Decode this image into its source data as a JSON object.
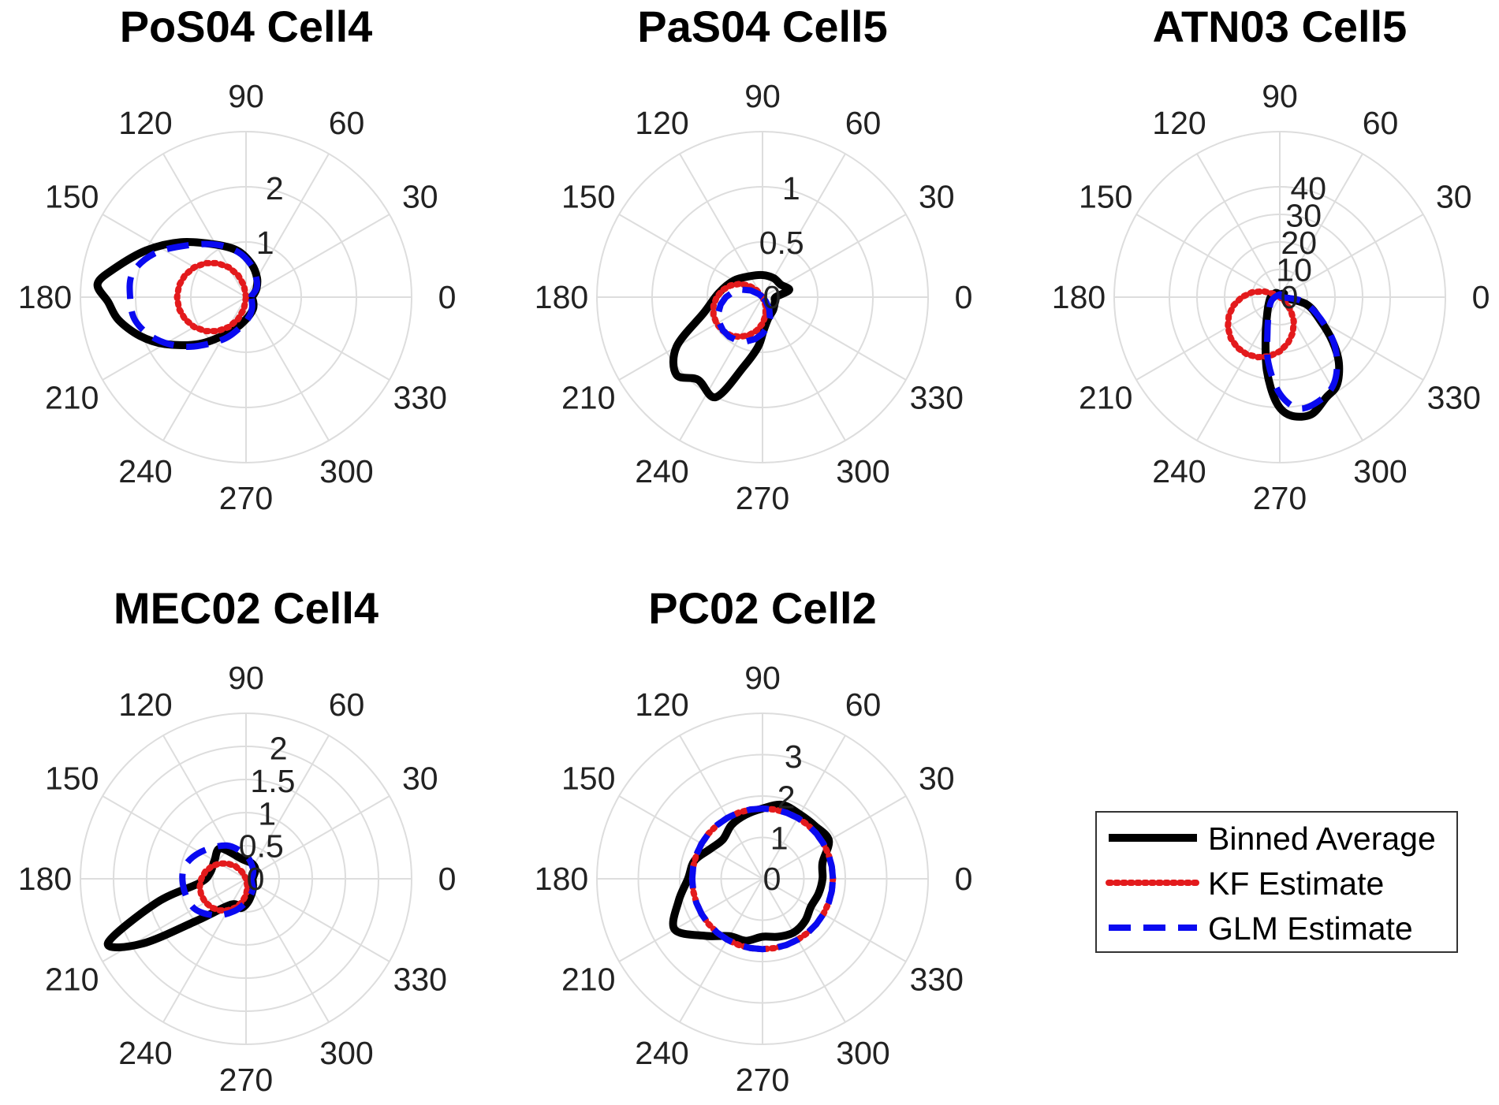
{
  "chart_data": [
    {
      "type": "polar",
      "title": "PoS04 Cell4",
      "angle_ticks": [
        "0",
        "30",
        "60",
        "90",
        "120",
        "150",
        "180",
        "210",
        "240",
        "270",
        "300",
        "330"
      ],
      "rmax": 3,
      "radial_tick_values": [
        1,
        2
      ],
      "radial_tick_labels": [
        "1",
        "2"
      ],
      "series": [
        {
          "name": "Binned Average",
          "points": [
            [
              0,
              0.1
            ],
            [
              20,
              0.15
            ],
            [
              40,
              0.25
            ],
            [
              60,
              0.4
            ],
            [
              80,
              0.6
            ],
            [
              100,
              0.85
            ],
            [
              120,
              1.1
            ],
            [
              140,
              1.55
            ],
            [
              155,
              2.0
            ],
            [
              168,
              2.45
            ],
            [
              175,
              2.7
            ],
            [
              182,
              2.5
            ],
            [
              190,
              2.35
            ],
            [
              200,
              2.05
            ],
            [
              210,
              1.7
            ],
            [
              225,
              1.2
            ],
            [
              245,
              0.7
            ],
            [
              270,
              0.4
            ],
            [
              300,
              0.25
            ],
            [
              330,
              0.15
            ]
          ]
        },
        {
          "name": "KF Estimate",
          "kind": "circle",
          "diameter": 1.25,
          "direction": 180
        },
        {
          "name": "GLM Estimate",
          "points": [
            [
              0,
              0.1
            ],
            [
              20,
              0.12
            ],
            [
              40,
              0.25
            ],
            [
              60,
              0.38
            ],
            [
              80,
              0.58
            ],
            [
              100,
              0.83
            ],
            [
              120,
              1.1
            ],
            [
              140,
              1.45
            ],
            [
              155,
              1.85
            ],
            [
              168,
              2.1
            ],
            [
              180,
              2.1
            ],
            [
              192,
              2.05
            ],
            [
              205,
              1.8
            ],
            [
              220,
              1.4
            ],
            [
              240,
              0.9
            ],
            [
              260,
              0.55
            ],
            [
              280,
              0.35
            ],
            [
              300,
              0.22
            ],
            [
              330,
              0.12
            ]
          ]
        }
      ]
    },
    {
      "type": "polar",
      "title": "PaS04 Cell5",
      "angle_ticks": [
        "0",
        "30",
        "60",
        "90",
        "120",
        "150",
        "180",
        "210",
        "240",
        "270",
        "300",
        "330"
      ],
      "rmax": 1.5,
      "radial_tick_values": [
        0,
        0.5,
        1
      ],
      "radial_tick_labels": [
        "0",
        "0.5",
        "1"
      ],
      "series": [
        {
          "name": "Binned Average",
          "points": [
            [
              0,
              0.12
            ],
            [
              15,
              0.25
            ],
            [
              35,
              0.2
            ],
            [
              60,
              0.2
            ],
            [
              90,
              0.2
            ],
            [
              120,
              0.22
            ],
            [
              150,
              0.3
            ],
            [
              175,
              0.4
            ],
            [
              195,
              0.55
            ],
            [
              210,
              0.9
            ],
            [
              222,
              1.05
            ],
            [
              232,
              0.95
            ],
            [
              245,
              1.0
            ],
            [
              255,
              0.65
            ],
            [
              265,
              0.45
            ],
            [
              272,
              0.3
            ],
            [
              285,
              0.2
            ],
            [
              310,
              0.15
            ],
            [
              340,
              0.12
            ]
          ]
        },
        {
          "name": "KF Estimate",
          "kind": "circle",
          "diameter": 0.48,
          "direction": 210
        },
        {
          "name": "GLM Estimate",
          "kind": "circle",
          "diameter": 0.47,
          "direction": 225
        }
      ]
    },
    {
      "type": "polar",
      "title": "ATN03 Cell5",
      "angle_ticks": [
        "0",
        "30",
        "60",
        "90",
        "120",
        "150",
        "180",
        "210",
        "240",
        "270",
        "300",
        "330"
      ],
      "rmax": 60,
      "radial_tick_values": [
        0,
        10,
        20,
        30,
        40
      ],
      "radial_tick_labels": [
        "0",
        "10",
        "20",
        "30",
        "40"
      ],
      "series": [
        {
          "name": "Binned Average",
          "points": [
            [
              0,
              1
            ],
            [
              40,
              2
            ],
            [
              80,
              1
            ],
            [
              100,
              1
            ],
            [
              130,
              2
            ],
            [
              170,
              3
            ],
            [
              200,
              4
            ],
            [
              230,
              7
            ],
            [
              250,
              15
            ],
            [
              260,
              27
            ],
            [
              268,
              38
            ],
            [
              275,
              43
            ],
            [
              285,
              44
            ],
            [
              295,
              40
            ],
            [
              303,
              38
            ],
            [
              312,
              32
            ],
            [
              320,
              25
            ],
            [
              330,
              17
            ],
            [
              345,
              10
            ]
          ]
        },
        {
          "name": "KF Estimate",
          "kind": "circle",
          "diameter": 24,
          "direction": 235
        },
        {
          "name": "GLM Estimate",
          "points": [
            [
              0,
              1
            ],
            [
              90,
              1
            ],
            [
              200,
              3
            ],
            [
              230,
              6
            ],
            [
              250,
              13
            ],
            [
              260,
              24
            ],
            [
              270,
              35
            ],
            [
              280,
              41
            ],
            [
              292,
              40
            ],
            [
              302,
              37
            ],
            [
              312,
              31
            ],
            [
              322,
              24
            ],
            [
              335,
              15
            ],
            [
              350,
              8
            ]
          ]
        }
      ]
    },
    {
      "type": "polar",
      "title": "MEC02 Cell4",
      "angle_ticks": [
        "0",
        "30",
        "60",
        "90",
        "120",
        "150",
        "180",
        "210",
        "240",
        "270",
        "300",
        "330"
      ],
      "rmax": 2.5,
      "radial_tick_values": [
        0,
        0.5,
        1,
        1.5,
        2
      ],
      "radial_tick_labels": [
        "0",
        "0.5",
        "1",
        "1.5",
        "2"
      ],
      "series": [
        {
          "name": "Binned Average",
          "points": [
            [
              0,
              0.1
            ],
            [
              20,
              0.12
            ],
            [
              45,
              0.2
            ],
            [
              70,
              0.25
            ],
            [
              100,
              0.3
            ],
            [
              130,
              0.6
            ],
            [
              150,
              0.55
            ],
            [
              170,
              0.55
            ],
            [
              185,
              0.7
            ],
            [
              195,
              1.4
            ],
            [
              205,
              2.3
            ],
            [
              212,
              1.85
            ],
            [
              220,
              1.0
            ],
            [
              240,
              0.45
            ],
            [
              260,
              0.45
            ],
            [
              275,
              0.35
            ],
            [
              300,
              0.2
            ],
            [
              330,
              0.12
            ]
          ]
        },
        {
          "name": "KF Estimate",
          "kind": "circle",
          "diameter": 0.72,
          "direction": 200
        },
        {
          "name": "GLM Estimate",
          "points": [
            [
              0,
              0.08
            ],
            [
              30,
              0.12
            ],
            [
              60,
              0.2
            ],
            [
              90,
              0.35
            ],
            [
              120,
              0.58
            ],
            [
              150,
              0.8
            ],
            [
              170,
              0.95
            ],
            [
              190,
              0.95
            ],
            [
              210,
              0.9
            ],
            [
              230,
              0.72
            ],
            [
              250,
              0.52
            ],
            [
              270,
              0.35
            ],
            [
              300,
              0.2
            ],
            [
              330,
              0.1
            ]
          ]
        }
      ]
    },
    {
      "type": "polar",
      "title": "PC02 Cell2",
      "angle_ticks": [
        "0",
        "30",
        "60",
        "90",
        "120",
        "150",
        "180",
        "210",
        "240",
        "270",
        "300",
        "330"
      ],
      "rmax": 4,
      "radial_tick_values": [
        0,
        1,
        2,
        3
      ],
      "radial_tick_labels": [
        "0",
        "1",
        "2",
        "3"
      ],
      "series": [
        {
          "name": "Binned Average",
          "points": [
            [
              0,
              1.45
            ],
            [
              15,
              1.5
            ],
            [
              30,
              1.85
            ],
            [
              45,
              1.8
            ],
            [
              60,
              1.8
            ],
            [
              75,
              1.85
            ],
            [
              90,
              1.7
            ],
            [
              105,
              1.6
            ],
            [
              120,
              1.5
            ],
            [
              135,
              1.35
            ],
            [
              150,
              1.45
            ],
            [
              165,
              1.7
            ],
            [
              180,
              1.8
            ],
            [
              195,
              2.1
            ],
            [
              210,
              2.45
            ],
            [
              225,
              1.95
            ],
            [
              240,
              1.6
            ],
            [
              255,
              1.55
            ],
            [
              270,
              1.4
            ],
            [
              285,
              1.45
            ],
            [
              300,
              1.5
            ],
            [
              315,
              1.45
            ],
            [
              330,
              1.35
            ],
            [
              345,
              1.4
            ]
          ]
        },
        {
          "name": "KF Estimate",
          "kind": "circle",
          "r": 1.7
        },
        {
          "name": "GLM Estimate",
          "kind": "circle",
          "r": 1.7
        }
      ]
    }
  ],
  "legend": {
    "placement": "bottom-right",
    "entries": [
      {
        "label": "Binned Average",
        "color": "#000000",
        "style": "solid"
      },
      {
        "label": "KF Estimate",
        "color": "#e31a1c",
        "style": "dotted"
      },
      {
        "label": "GLM Estimate",
        "color": "#0a0af0",
        "style": "dashed"
      }
    ]
  },
  "colors": {
    "grid": "#dddddd",
    "binned": "#000000",
    "kf": "#e31a1c",
    "glm": "#0a0af0"
  }
}
